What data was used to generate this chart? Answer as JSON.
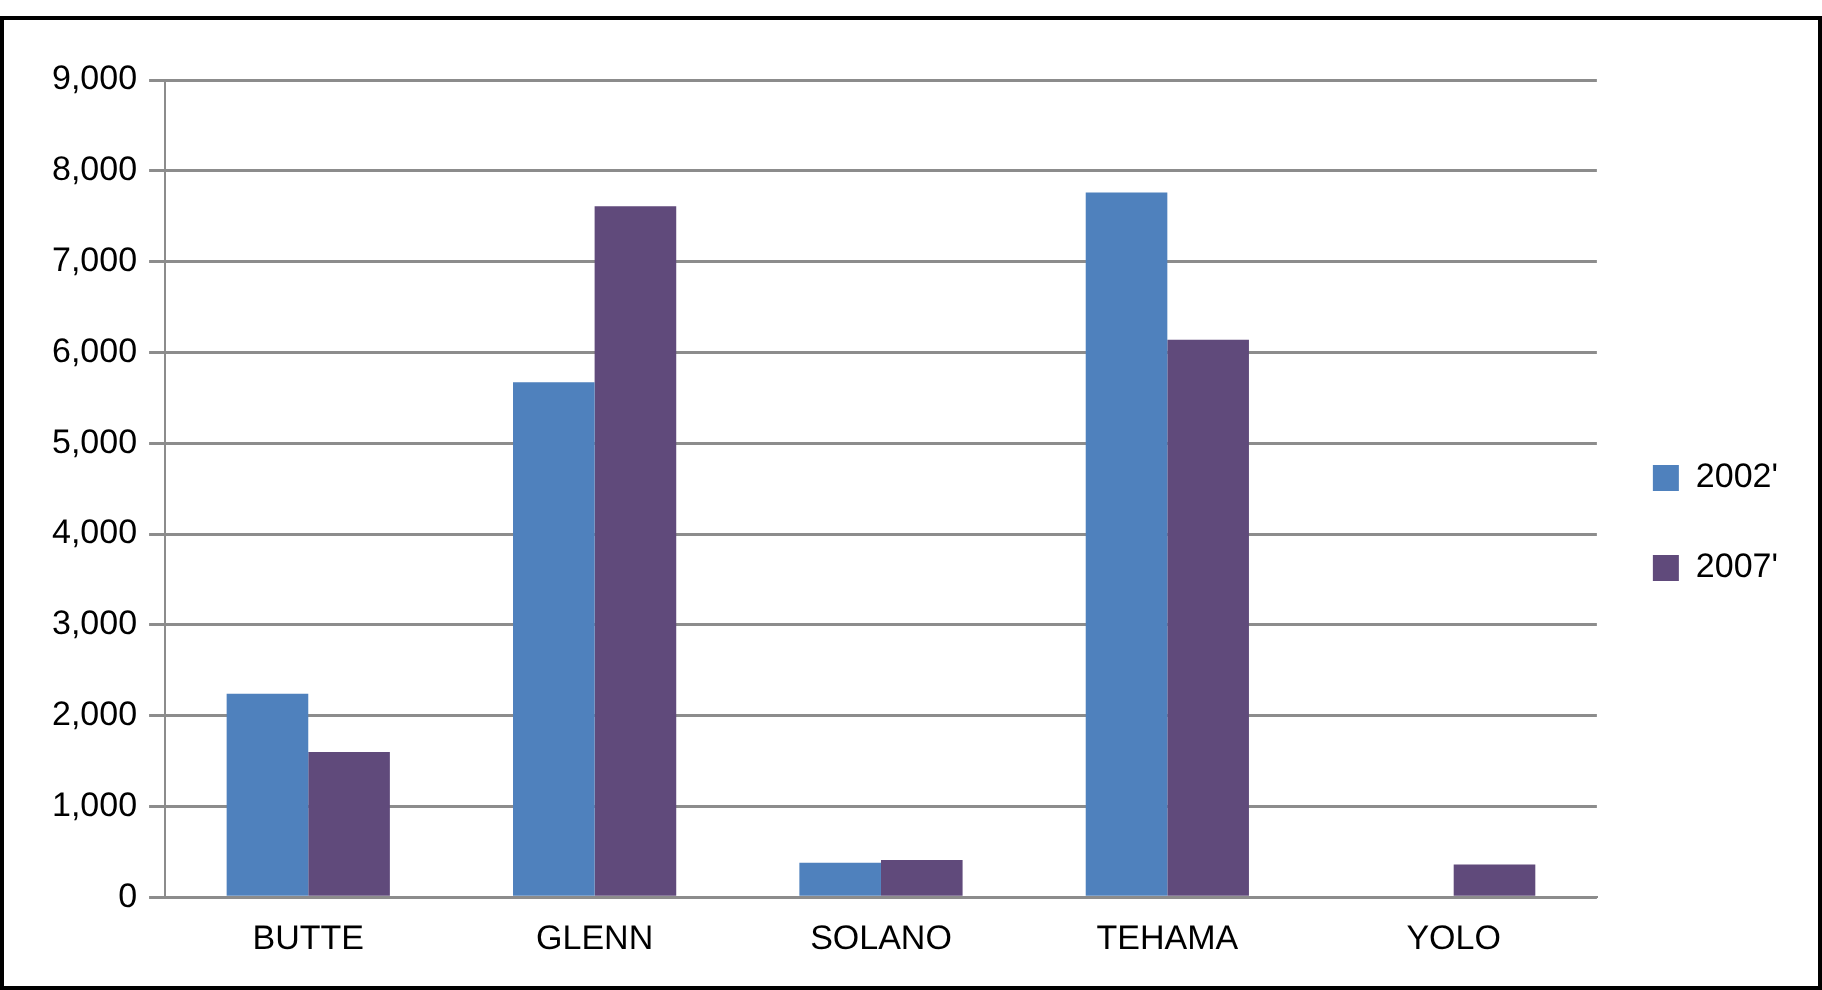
{
  "chart_data": {
    "type": "bar",
    "categories": [
      "BUTTE",
      "GLENN",
      "SOLANO",
      "TEHAMA",
      "YOLO"
    ],
    "series": [
      {
        "name": "2002'",
        "color": "#4f81bd",
        "values": [
          2240,
          5670,
          380,
          7760,
          0
        ]
      },
      {
        "name": "2007'",
        "color": "#604a7b",
        "values": [
          1600,
          7610,
          410,
          6140,
          360
        ]
      }
    ],
    "ylim": [
      0,
      9000
    ],
    "yticks": [
      {
        "value": 0,
        "label": "0"
      },
      {
        "value": 1000,
        "label": "1,000"
      },
      {
        "value": 2000,
        "label": "2,000"
      },
      {
        "value": 3000,
        "label": "3,000"
      },
      {
        "value": 4000,
        "label": "4,000"
      },
      {
        "value": 5000,
        "label": "5,000"
      },
      {
        "value": 6000,
        "label": "6,000"
      },
      {
        "value": 7000,
        "label": "7,000"
      },
      {
        "value": 8000,
        "label": "8,000"
      },
      {
        "value": 9000,
        "label": "9,000"
      }
    ],
    "grid": "y",
    "legend": "right"
  }
}
